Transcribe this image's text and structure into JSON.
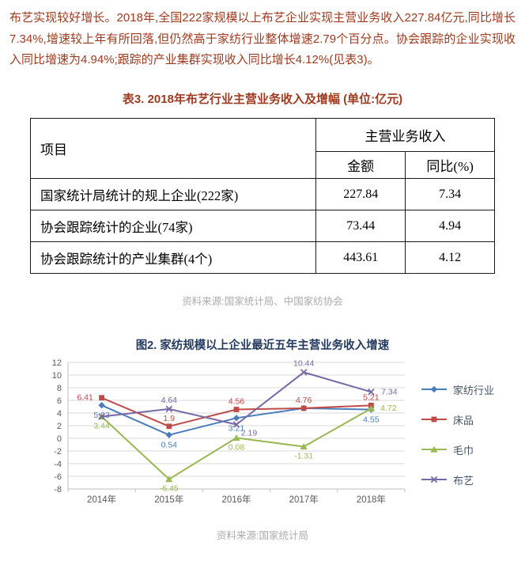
{
  "page": {
    "paragraph": "布艺实现较好增长。2018年,全国222家规模以上布艺企业实现主营业务收入227.84亿元,同比增长7.34%,增速较上年有所回落,但仍然高于家纺行业整体增速2.79个百分点。协会跟踪的企业实现收入同比增速为4.94%;跟踪的产业集群实现收入同比增长4.12%(见表3)。"
  },
  "table": {
    "title": "表3. 2018年布艺行业主营业务收入及增幅 (单位:亿元)",
    "header": {
      "item_col": "项目",
      "group_col": "主营业务收入",
      "amount_col": "金额",
      "yoy_col": "同比(%)"
    },
    "rows": [
      {
        "item": "国家统计局统计的规上企业(222家)",
        "amount": "227.84",
        "yoy": "7.34"
      },
      {
        "item": "协会跟踪统计的企业(74家)",
        "amount": "73.44",
        "yoy": "4.94"
      },
      {
        "item": "协会跟踪统计的产业集群(4个)",
        "amount": "443.61",
        "yoy": "4.12"
      }
    ],
    "source": "资料来源:国家统计局、中国家纺协会"
  },
  "chart": {
    "source": "资料来源:国家统计局"
  },
  "chart_data": {
    "type": "line",
    "title": "图2. 家纺规模以上企业最近五年主营业务收入增速",
    "categories": [
      "2014年",
      "2015年",
      "2016年",
      "2017年",
      "2018年"
    ],
    "series": [
      {
        "name": "家纺行业",
        "color": "#4a7ebb",
        "marker": "diamond",
        "values": [
          5.23,
          0.54,
          3.21,
          4.76,
          4.55
        ],
        "labels": [
          "5.23",
          "0.54",
          "3.21",
          null,
          "4.55"
        ]
      },
      {
        "name": "床品",
        "color": "#be4b48",
        "marker": "square",
        "values": [
          6.41,
          1.9,
          4.56,
          4.76,
          5.21
        ],
        "labels": [
          "6.41",
          "1.9",
          "4.56",
          "4.76",
          "5.21"
        ]
      },
      {
        "name": "毛巾",
        "color": "#98b954",
        "marker": "triangle",
        "values": [
          3.44,
          -6.45,
          0.08,
          -1.31,
          4.72
        ],
        "labels": [
          "3.44",
          "-6.45",
          "0.08",
          "-1.31",
          "4.72"
        ]
      },
      {
        "name": "布艺",
        "color": "#7a68a6",
        "marker": "x",
        "values": [
          3.44,
          4.64,
          2.19,
          10.44,
          7.34
        ],
        "labels": [
          null,
          "4.64",
          "2.19",
          "10.44",
          "7.34"
        ]
      }
    ],
    "ylim": [
      -8,
      12
    ],
    "ytick_step": 2,
    "grid": true,
    "legend_position": "right",
    "xlabel": "",
    "ylabel": ""
  }
}
